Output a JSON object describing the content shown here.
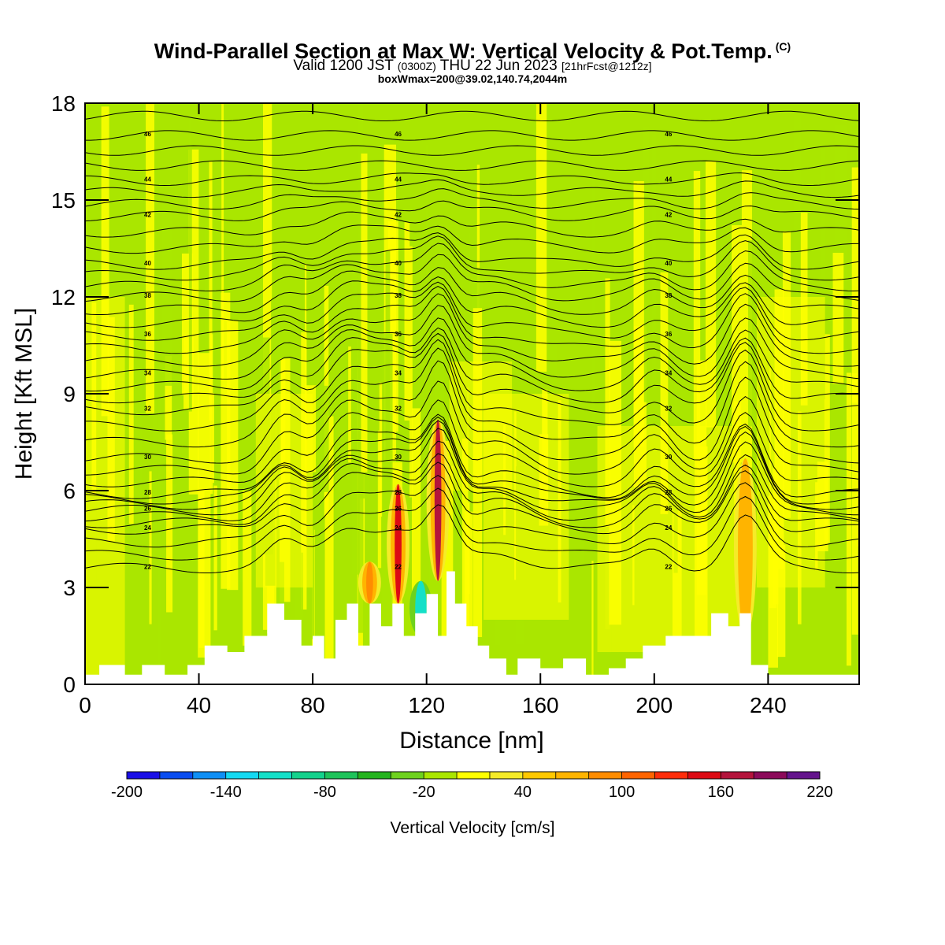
{
  "header": {
    "title": "Wind-Parallel Section at Max W: Vertical Velocity & Pot.Temp.",
    "copyright": "(C)",
    "subtitle_main": "Valid 1200 JST",
    "subtitle_utc": "(0300Z)",
    "subtitle_date": "THU 22 Jun 2023",
    "subtitle_fcst": "[21hrFcst@1212z]",
    "subsubtitle": "boxWmax=200@39.02,140.74,2044m"
  },
  "chart_data": {
    "type": "heatmap",
    "title": "Wind-Parallel Section at Max W: Vertical Velocity & Pot.Temp.",
    "xlabel": "Distance [nm]",
    "ylabel": "Height [Kft MSL]",
    "xlim": [
      0,
      272
    ],
    "ylim": [
      0,
      18
    ],
    "x_ticks": [
      0,
      40,
      80,
      120,
      160,
      200,
      240
    ],
    "y_ticks": [
      0,
      3,
      6,
      9,
      12,
      15,
      18
    ],
    "colorbar": {
      "title": "Vertical Velocity [cm/s]",
      "levels": [
        -200,
        -180,
        -160,
        -140,
        -120,
        -100,
        -80,
        -60,
        -40,
        -20,
        0,
        20,
        40,
        60,
        80,
        100,
        120,
        140,
        160,
        180,
        200,
        220
      ],
      "tick_labels": [
        -200,
        -140,
        -80,
        -20,
        40,
        100,
        160,
        220
      ],
      "colors": [
        "#1a0fe6",
        "#0a4df0",
        "#0f8ff5",
        "#14d9f2",
        "#14e0c8",
        "#14d28c",
        "#1ec35a",
        "#24b41e",
        "#6ed21e",
        "#aae600",
        "#ffff00",
        "#f5eb28",
        "#ffc800",
        "#ffb400",
        "#ff8c00",
        "#ff6400",
        "#ff2d0a",
        "#dc0a14",
        "#b4143c",
        "#8c0a5a",
        "#64148c"
      ]
    },
    "terrain_profile": {
      "x": [
        0,
        5,
        14,
        20,
        28,
        36,
        42,
        50,
        56,
        64,
        70,
        76,
        80,
        84,
        88,
        92,
        96,
        100,
        104,
        108,
        112,
        116,
        120,
        124,
        127,
        130,
        134,
        138,
        142,
        148,
        152,
        160,
        168,
        176,
        180,
        184,
        190,
        196,
        204,
        212,
        220,
        226,
        230,
        234,
        240,
        250,
        260,
        272
      ],
      "height_kft": [
        0.3,
        0.6,
        0.3,
        0.6,
        0.3,
        0.6,
        1.2,
        1.0,
        1.5,
        2.5,
        2.0,
        1.2,
        1.5,
        0.8,
        2.0,
        2.5,
        1.2,
        2.5,
        1.8,
        2.5,
        1.5,
        2.2,
        2.8,
        1.5,
        3.5,
        2.5,
        1.8,
        1.2,
        0.8,
        0.3,
        0.8,
        0.5,
        0.8,
        0.3,
        0.3,
        0.5,
        0.8,
        1.2,
        1.5,
        1.5,
        2.2,
        1.8,
        2.2,
        0.6,
        0.3,
        0.3,
        0.3,
        0.3
      ]
    },
    "theta_contours": {
      "labels": [
        22,
        24,
        26,
        28,
        30,
        32,
        34,
        36,
        38,
        40,
        42,
        44,
        46
      ],
      "base_heights_kft": [
        3.6,
        4.8,
        5.4,
        5.9,
        7.0,
        8.5,
        9.6,
        10.8,
        12.0,
        13.0,
        14.5,
        15.6,
        17.0
      ]
    },
    "updraft_cores": [
      {
        "x": 110,
        "bottom_kft": 2.5,
        "top_kft": 6.2,
        "w": 150
      },
      {
        "x": 124,
        "bottom_kft": 3.2,
        "top_kft": 8.2,
        "w": 170
      },
      {
        "x": 100,
        "bottom_kft": 2.5,
        "top_kft": 3.8,
        "w": 80
      },
      {
        "x": 232,
        "bottom_kft": 1.5,
        "top_kft": 7.0,
        "w": 70
      }
    ],
    "downdraft_cores": [
      {
        "x": 118,
        "bottom_kft": 1.5,
        "top_kft": 3.2,
        "w": -120
      }
    ]
  }
}
